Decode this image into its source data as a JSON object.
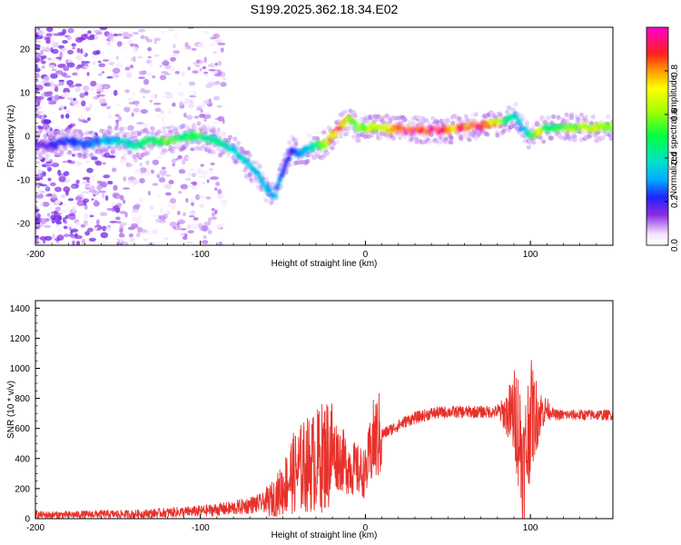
{
  "title": "S199.2025.362.18.34.E02",
  "chart_data": [
    {
      "type": "heatmap",
      "name": "spectrogram",
      "xlabel": "Height of straight line (km)",
      "ylabel": "Frequency (Hz)",
      "xlim": [
        -200,
        150
      ],
      "ylim": [
        -25,
        25
      ],
      "xticks": [
        -200,
        -100,
        0,
        100
      ],
      "yticks": [
        -20,
        -10,
        0,
        10,
        20
      ],
      "colorbar": {
        "label": "Normalized spectral amplitude",
        "range": [
          0.0,
          1.0
        ],
        "ticks": [
          0.0,
          0.2,
          0.4,
          0.6,
          0.8
        ]
      },
      "ridge": {
        "x": [
          -200,
          -190,
          -180,
          -170,
          -160,
          -150,
          -140,
          -130,
          -120,
          -110,
          -100,
          -90,
          -80,
          -70,
          -65,
          -60,
          -55,
          -50,
          -45,
          -40,
          -35,
          -30,
          -25,
          -20,
          -15,
          -10,
          -5,
          0,
          10,
          20,
          30,
          40,
          50,
          60,
          70,
          80,
          85,
          90,
          95,
          100,
          105,
          110,
          120,
          130,
          140,
          150
        ],
        "frequency": [
          -2,
          -2,
          -1,
          -2,
          -1,
          -1,
          -2,
          -1,
          -1,
          0,
          0,
          -1,
          -3,
          -7,
          -9,
          -12,
          -14,
          -8,
          -3,
          -4,
          -3,
          -2,
          -2,
          0,
          2,
          4,
          2,
          2,
          2,
          1.5,
          1.5,
          1.5,
          1.5,
          2,
          2.5,
          3,
          3.5,
          5,
          2,
          0,
          1,
          2,
          2,
          2,
          2,
          2
        ],
        "amplitude": [
          0.15,
          0.2,
          0.25,
          0.25,
          0.3,
          0.35,
          0.45,
          0.5,
          0.55,
          0.5,
          0.5,
          0.45,
          0.4,
          0.35,
          0.35,
          0.35,
          0.3,
          0.25,
          0.2,
          0.3,
          0.35,
          0.45,
          0.6,
          0.8,
          0.9,
          0.6,
          0.6,
          0.6,
          0.7,
          0.9,
          0.95,
          0.95,
          0.85,
          0.85,
          0.9,
          0.7,
          0.5,
          0.4,
          0.3,
          0.45,
          0.75,
          0.45,
          0.55,
          0.6,
          0.6,
          0.6
        ]
      }
    },
    {
      "type": "line",
      "name": "snr",
      "xlabel": "Height of straight line (km)",
      "ylabel": "SNR (10 * v/v)",
      "xlim": [
        -200,
        150
      ],
      "ylim": [
        0,
        1450
      ],
      "xticks": [
        -200,
        -100,
        0,
        100
      ],
      "yticks": [
        0,
        200,
        400,
        600,
        800,
        1000,
        1200,
        1400
      ],
      "color": "#e8302a",
      "series": [
        {
          "name": "SNR",
          "x": [
            -200,
            -180,
            -160,
            -140,
            -120,
            -100,
            -90,
            -80,
            -70,
            -60,
            -55,
            -50,
            -45,
            -40,
            -35,
            -30,
            -25,
            -20,
            -15,
            -10,
            -5,
            0,
            5,
            10,
            15,
            20,
            25,
            30,
            40,
            50,
            60,
            70,
            80,
            85,
            90,
            92,
            94,
            96,
            98,
            100,
            102,
            105,
            110,
            115,
            120,
            130,
            140,
            150
          ],
          "y": [
            25,
            25,
            30,
            30,
            40,
            50,
            60,
            70,
            90,
            110,
            140,
            200,
            290,
            330,
            360,
            380,
            420,
            450,
            400,
            350,
            320,
            300,
            520,
            560,
            590,
            620,
            650,
            670,
            700,
            710,
            710,
            710,
            710,
            700,
            690,
            660,
            500,
            300,
            500,
            700,
            680,
            700,
            730,
            690,
            690,
            690,
            690,
            690
          ]
        }
      ]
    }
  ]
}
